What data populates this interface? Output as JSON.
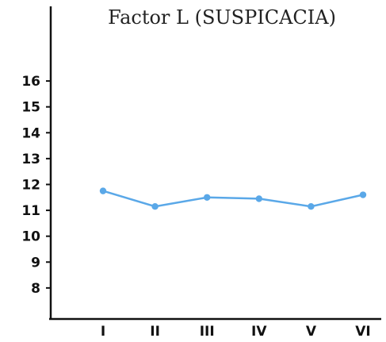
{
  "chart_data": {
    "type": "line",
    "title": "Factor L (SUSPICACIA)",
    "xlabel": "",
    "ylabel": "",
    "categories": [
      "I",
      "II",
      "III",
      "IV",
      "V",
      "VI"
    ],
    "yticks": [
      "16",
      "15",
      "14",
      "13",
      "12",
      "11",
      "10",
      "9",
      "8"
    ],
    "ylim": [
      6.8,
      16.6
    ],
    "grid": false,
    "legend": "none",
    "series": [
      {
        "values": [
          11.75,
          11.15,
          11.5,
          11.45,
          11.15,
          11.6
        ],
        "color": "#5aa8e8"
      }
    ]
  }
}
